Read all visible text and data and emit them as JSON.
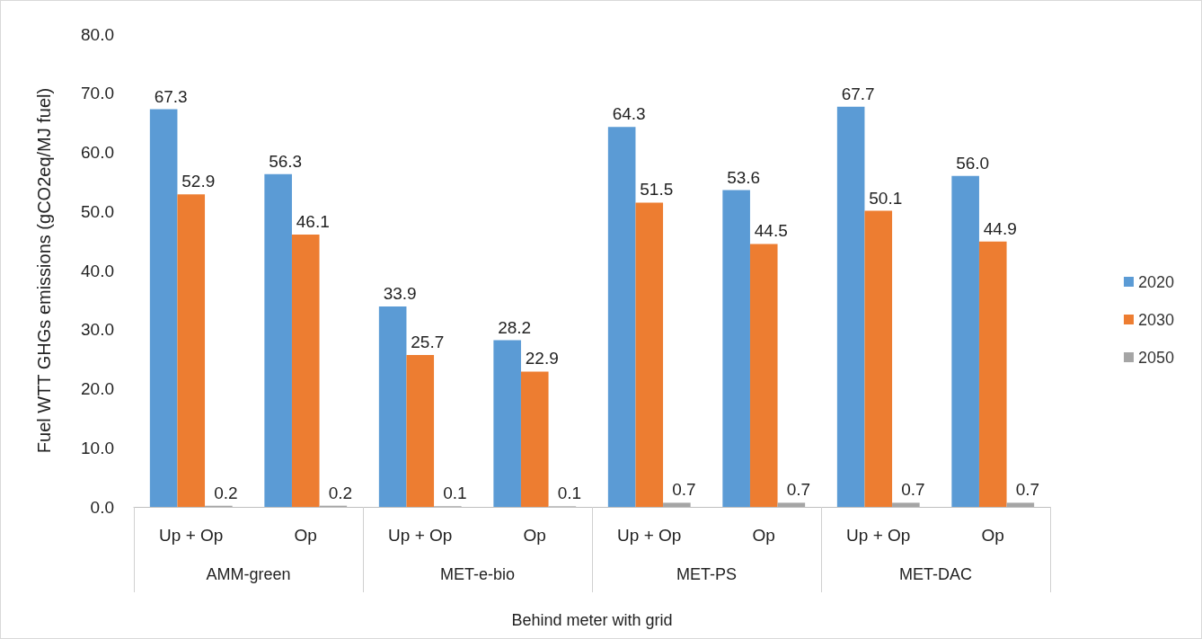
{
  "chart_data": {
    "type": "bar",
    "ylabel": "Fuel WTT GHGs emissions (gCO2eq/MJ fuel)",
    "xlabel": "Behind meter with grid",
    "categories": [
      "Up + Op",
      "Op",
      "Up + Op",
      "Op",
      "Up + Op",
      "Op",
      "Up + Op",
      "Op"
    ],
    "annotations": [
      "AMM-green",
      "MET-e-bio",
      "MET-PS",
      "MET-DAC"
    ],
    "series": [
      {
        "name": "2020",
        "color": "#5b9bd5",
        "values": [
          67.3,
          56.3,
          33.9,
          28.2,
          64.3,
          53.6,
          67.7,
          56.0
        ],
        "value_labels": [
          "67.3",
          "56.3",
          "33.9",
          "28.2",
          "64.3",
          "53.6",
          "67.7",
          "56.0"
        ]
      },
      {
        "name": "2030",
        "color": "#ed7d31",
        "values": [
          52.9,
          46.1,
          25.7,
          22.9,
          51.5,
          44.5,
          50.1,
          44.9
        ],
        "value_labels": [
          "52.9",
          "46.1",
          "25.7",
          "22.9",
          "51.5",
          "44.5",
          "50.1",
          "44.9"
        ]
      },
      {
        "name": "2050",
        "color": "#a5a5a5",
        "values": [
          0.2,
          0.2,
          0.1,
          0.1,
          0.7,
          0.7,
          0.7,
          0.7
        ],
        "value_labels": [
          "0.2",
          "0.2",
          "0.1",
          "0.1",
          "0.7",
          "0.7",
          "0.7",
          "0.7"
        ]
      }
    ],
    "ylim": [
      0,
      80
    ],
    "yticks": [
      {
        "value": 0,
        "label": "0.0"
      },
      {
        "value": 10,
        "label": "10.0"
      },
      {
        "value": 20,
        "label": "20.0"
      },
      {
        "value": 30,
        "label": "30.0"
      },
      {
        "value": 40,
        "label": "40.0"
      },
      {
        "value": 50,
        "label": "50.0"
      },
      {
        "value": 60,
        "label": "60.0"
      },
      {
        "value": 70,
        "label": "70.0"
      },
      {
        "value": 80,
        "label": "80.0"
      }
    ],
    "legend": "right"
  }
}
